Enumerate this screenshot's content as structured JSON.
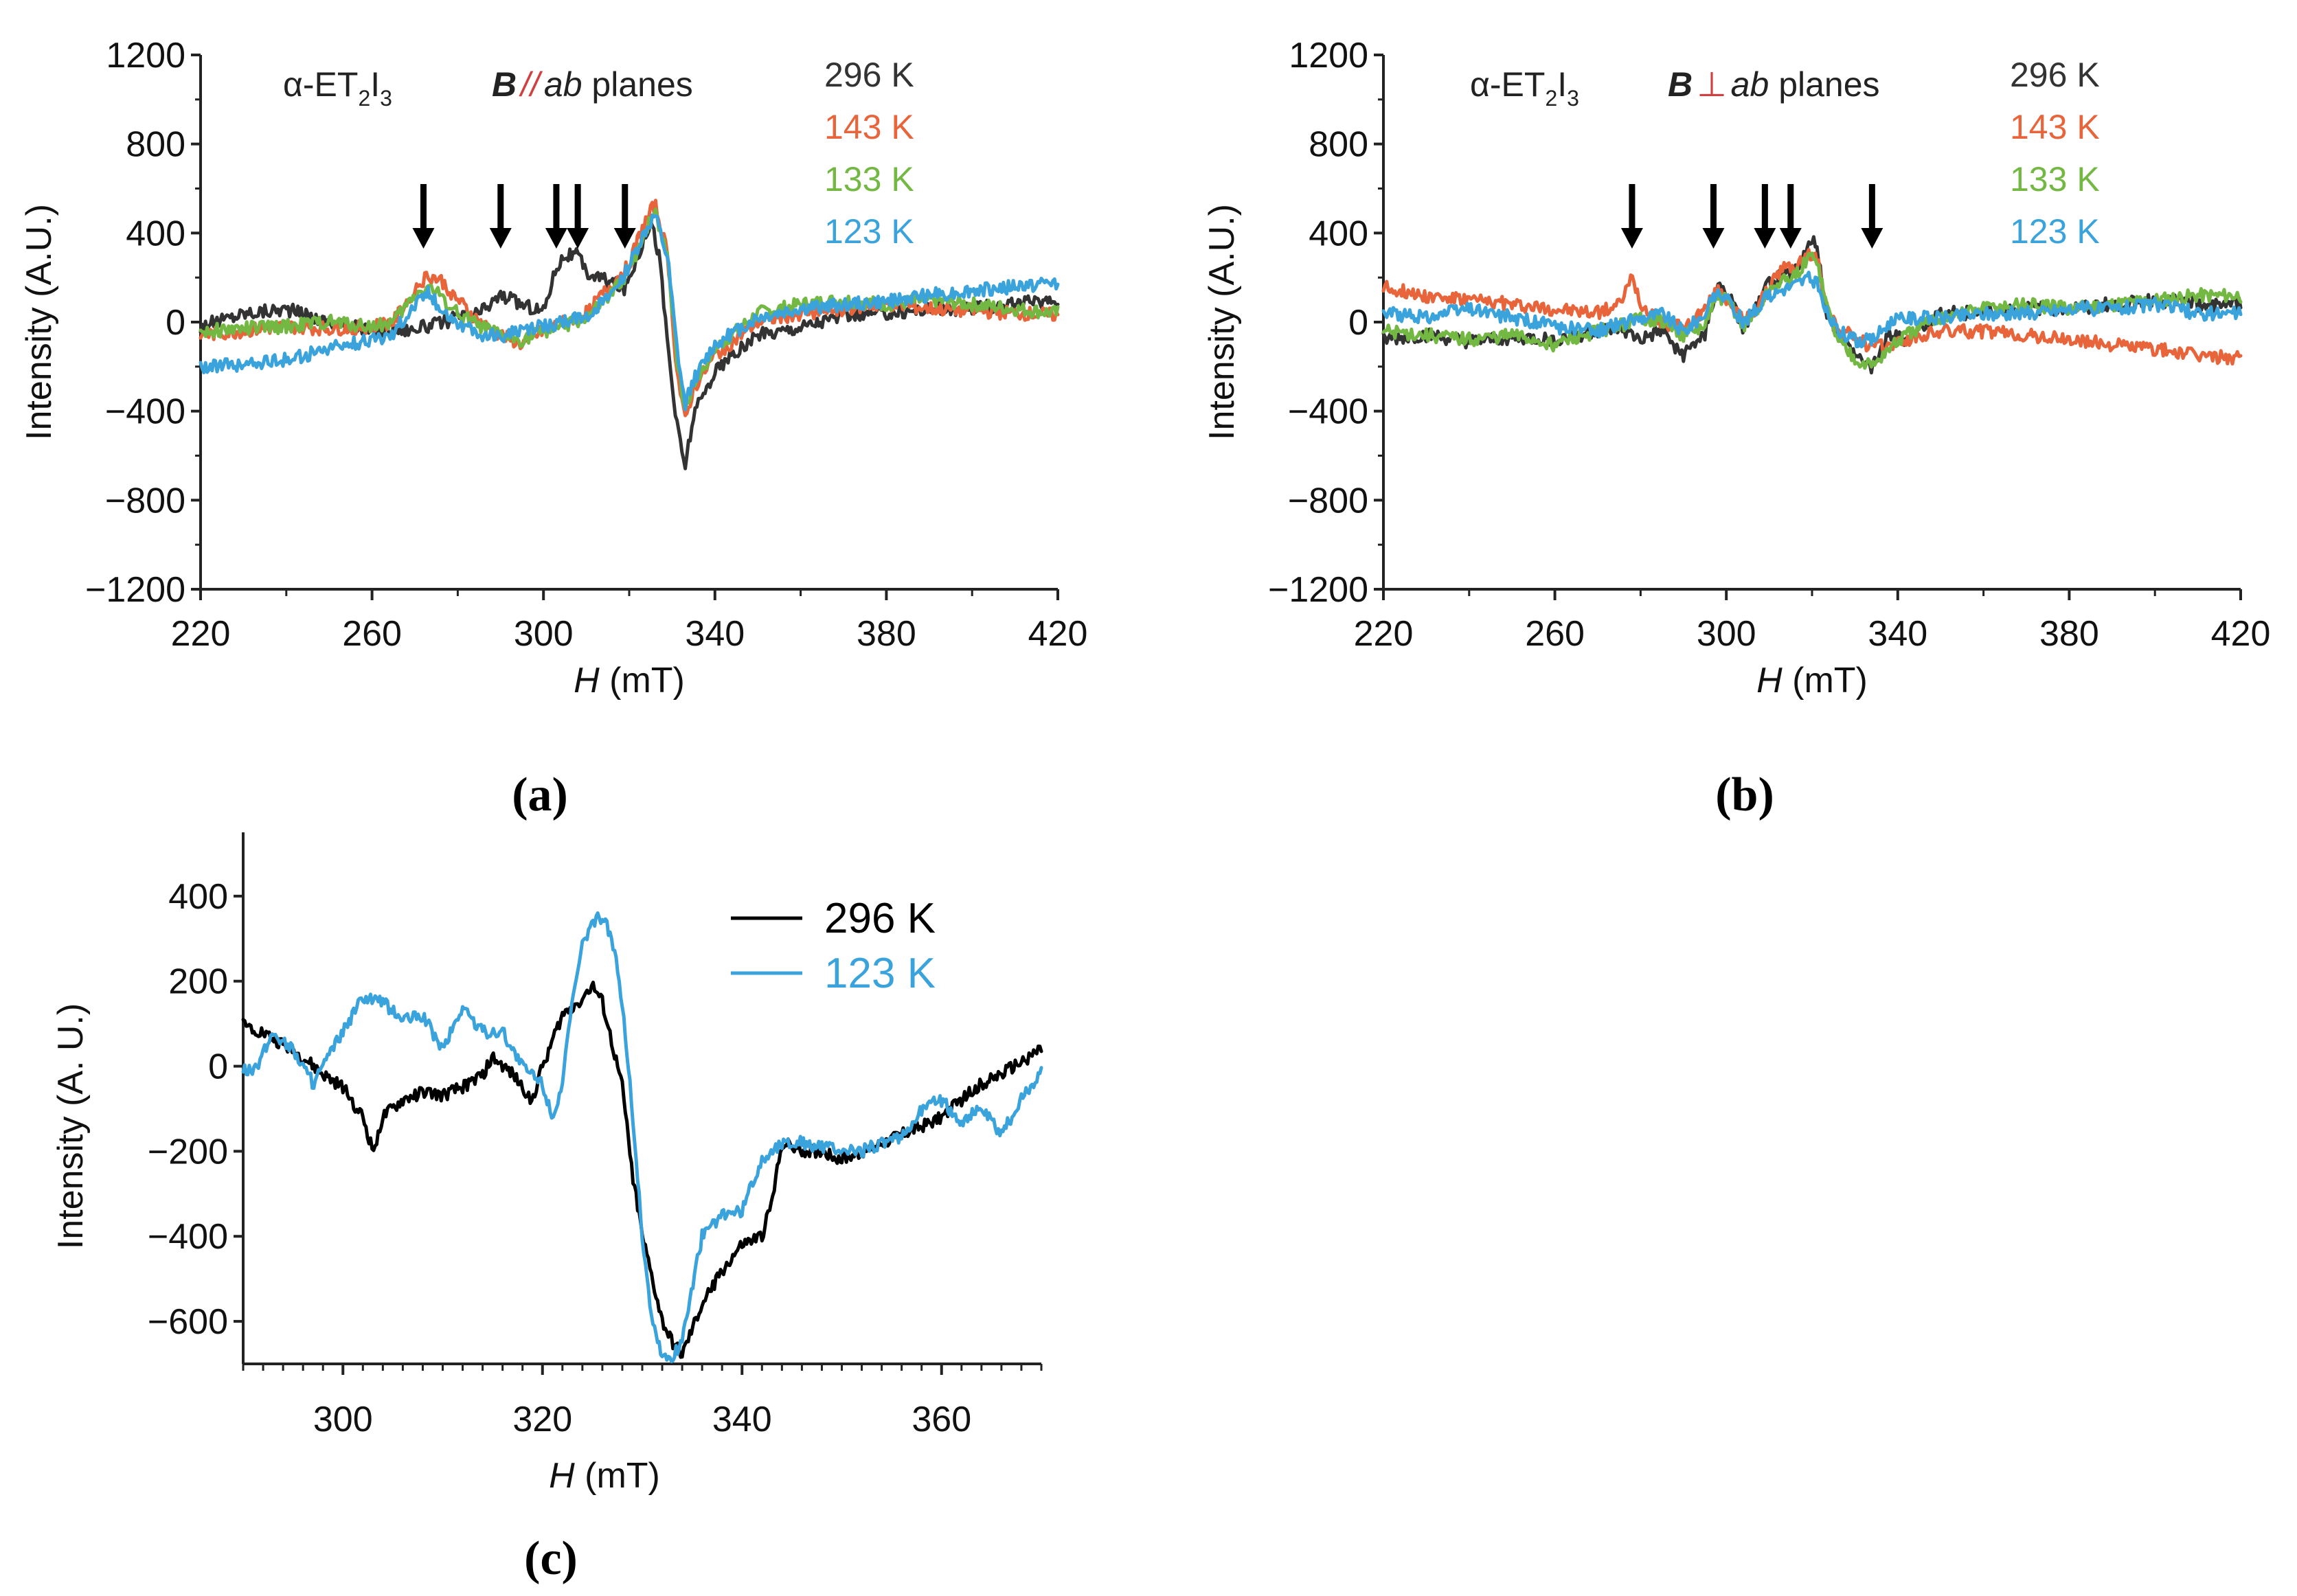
{
  "colors": {
    "k296": "#333333",
    "k143": "#e8643a",
    "k133": "#73b843",
    "k123": "#3aa3dc",
    "black": "#000000",
    "accent": "#d04040"
  },
  "panels": {
    "a": {
      "label": "(a)",
      "compound": "α-ET",
      "compound_sub1": "2",
      "compound_mid": "I",
      "compound_sub2": "3",
      "field_symbol": "B",
      "field_relation": "//",
      "field_plane": "ab",
      "field_suffix": " planes",
      "legend": [
        "296 K",
        "143 K",
        "133 K",
        "123 K"
      ]
    },
    "b": {
      "label": "(b)",
      "compound": "α-ET",
      "compound_sub1": "2",
      "compound_mid": "I",
      "compound_sub2": "3",
      "field_symbol": "B",
      "field_relation": "⊥",
      "field_plane": "ab",
      "field_suffix": " planes",
      "legend": [
        "296 K",
        "143 K",
        "133 K",
        "123 K"
      ]
    },
    "c": {
      "label": "(c)",
      "legend": [
        "296 K",
        "123 K"
      ]
    }
  },
  "chart_data": [
    {
      "id": "a",
      "type": "line",
      "title": "α-ET2I3 B // ab planes",
      "xlabel": "H (mT)",
      "ylabel": "Intensity (A.U.)",
      "xlim": [
        220,
        420
      ],
      "ylim": [
        -1200,
        1200
      ],
      "xticks": [
        220,
        260,
        300,
        340,
        380,
        420
      ],
      "yticks": [
        1200,
        800,
        400,
        0,
        -400,
        -800,
        -1200
      ],
      "ytick_labels": [
        "1200",
        "800",
        "400",
        "0",
        "−400",
        "−800",
        "−1200"
      ],
      "arrows_at": [
        272,
        290,
        303,
        308,
        319
      ],
      "series": [
        {
          "name": "296 K",
          "color": "k296",
          "x": [
            220,
            230,
            240,
            250,
            260,
            270,
            275,
            280,
            285,
            290,
            295,
            300,
            303,
            305,
            308,
            310,
            313,
            316,
            319,
            322,
            325,
            327,
            329,
            331,
            333,
            335,
            340,
            350,
            360,
            370,
            380,
            390,
            400,
            410,
            420
          ],
          "y": [
            -20,
            40,
            60,
            0,
            -40,
            -30,
            -10,
            20,
            40,
            120,
            80,
            50,
            250,
            300,
            300,
            220,
            200,
            180,
            150,
            300,
            460,
            300,
            -100,
            -450,
            -650,
            -420,
            -220,
            -60,
            -20,
            30,
            40,
            60,
            60,
            80,
            100
          ]
        },
        {
          "name": "143 K",
          "color": "k143",
          "x": [
            220,
            230,
            240,
            250,
            260,
            265,
            270,
            273,
            276,
            280,
            285,
            290,
            295,
            300,
            305,
            310,
            315,
            320,
            323,
            326,
            329,
            331,
            333,
            335,
            340,
            350,
            360,
            370,
            380,
            390,
            400,
            410,
            420
          ],
          "y": [
            -60,
            -40,
            -20,
            -30,
            -20,
            0,
            150,
            210,
            190,
            100,
            0,
            -60,
            -100,
            -40,
            0,
            40,
            150,
            260,
            420,
            530,
            300,
            -200,
            -450,
            -300,
            -150,
            0,
            40,
            60,
            80,
            60,
            50,
            40,
            30
          ]
        },
        {
          "name": "133 K",
          "color": "k133",
          "x": [
            220,
            230,
            240,
            250,
            260,
            265,
            270,
            273,
            276,
            280,
            285,
            290,
            295,
            300,
            305,
            310,
            315,
            320,
            323,
            326,
            329,
            331,
            333,
            335,
            340,
            350,
            360,
            370,
            380,
            390,
            400,
            410,
            420
          ],
          "y": [
            -40,
            -30,
            -20,
            0,
            -20,
            0,
            120,
            160,
            120,
            40,
            -20,
            -60,
            -80,
            -40,
            -20,
            20,
            100,
            230,
            380,
            500,
            300,
            -150,
            -400,
            -280,
            -120,
            40,
            80,
            100,
            80,
            100,
            80,
            60,
            40
          ]
        },
        {
          "name": "123 K",
          "color": "k123",
          "x": [
            220,
            230,
            240,
            250,
            260,
            265,
            270,
            273,
            276,
            280,
            285,
            290,
            295,
            300,
            305,
            310,
            315,
            320,
            323,
            326,
            329,
            331,
            333,
            335,
            340,
            350,
            360,
            370,
            380,
            390,
            400,
            410,
            420
          ],
          "y": [
            -200,
            -190,
            -170,
            -120,
            -80,
            -50,
            80,
            140,
            60,
            0,
            -60,
            -60,
            -40,
            -20,
            0,
            30,
            100,
            250,
            380,
            480,
            280,
            -100,
            -380,
            -260,
            -100,
            20,
            60,
            80,
            90,
            120,
            140,
            160,
            180
          ]
        }
      ]
    },
    {
      "id": "b",
      "type": "line",
      "title": "α-ET2I3 B ⊥ ab planes",
      "xlabel": "H (mT)",
      "ylabel": "Intensity (A.U.)",
      "xlim": [
        220,
        420
      ],
      "ylim": [
        -1200,
        1200
      ],
      "xticks": [
        220,
        260,
        300,
        340,
        380,
        420
      ],
      "yticks": [
        1200,
        800,
        400,
        0,
        -400,
        -800,
        -1200
      ],
      "ytick_labels": [
        "1200",
        "800",
        "400",
        "0",
        "−400",
        "−800",
        "−1200"
      ],
      "arrows_at": [
        278,
        297,
        309,
        315,
        334
      ],
      "series": [
        {
          "name": "296 K",
          "color": "k296",
          "x": [
            220,
            230,
            240,
            250,
            260,
            270,
            275,
            280,
            285,
            290,
            295,
            298,
            301,
            304,
            307,
            310,
            313,
            316,
            319,
            321,
            323,
            326,
            330,
            334,
            338,
            342,
            350,
            360,
            370,
            380,
            390,
            400,
            410,
            420
          ],
          "y": [
            -80,
            -60,
            -90,
            -70,
            -80,
            -40,
            -30,
            -80,
            -40,
            -150,
            -50,
            170,
            100,
            -40,
            60,
            180,
            210,
            230,
            330,
            370,
            60,
            -50,
            -150,
            -200,
            -60,
            -80,
            40,
            40,
            60,
            60,
            80,
            100,
            80,
            80
          ]
        },
        {
          "name": "143 K",
          "color": "k143",
          "x": [
            220,
            230,
            240,
            250,
            260,
            270,
            275,
            278,
            281,
            285,
            290,
            295,
            298,
            301,
            304,
            307,
            310,
            313,
            316,
            319,
            321,
            323,
            326,
            330,
            334,
            338,
            342,
            350,
            360,
            370,
            380,
            390,
            400,
            410,
            420
          ],
          "y": [
            160,
            120,
            100,
            80,
            60,
            40,
            80,
            200,
            40,
            0,
            -30,
            60,
            140,
            90,
            0,
            60,
            150,
            240,
            250,
            300,
            300,
            120,
            -40,
            -60,
            -120,
            -100,
            -80,
            -40,
            -40,
            -60,
            -80,
            -100,
            -120,
            -150,
            -160
          ]
        },
        {
          "name": "133 K",
          "color": "k133",
          "x": [
            220,
            230,
            240,
            250,
            260,
            270,
            275,
            280,
            285,
            290,
            295,
            298,
            301,
            304,
            307,
            310,
            313,
            316,
            319,
            321,
            323,
            326,
            330,
            334,
            338,
            342,
            350,
            360,
            370,
            380,
            390,
            400,
            410,
            420
          ],
          "y": [
            -40,
            -60,
            -80,
            -60,
            -100,
            -40,
            -20,
            20,
            0,
            -60,
            -20,
            120,
            80,
            -20,
            40,
            140,
            180,
            200,
            280,
            300,
            100,
            -80,
            -160,
            -200,
            -120,
            -60,
            20,
            60,
            80,
            60,
            80,
            100,
            120,
            120
          ]
        },
        {
          "name": "123 K",
          "color": "k123",
          "x": [
            220,
            230,
            240,
            250,
            260,
            270,
            275,
            280,
            285,
            290,
            295,
            298,
            301,
            304,
            307,
            310,
            313,
            316,
            319,
            321,
            323,
            326,
            330,
            334,
            338,
            342,
            350,
            360,
            370,
            380,
            390,
            400,
            410,
            420
          ],
          "y": [
            40,
            20,
            60,
            20,
            -20,
            -40,
            -10,
            20,
            40,
            -40,
            40,
            140,
            80,
            0,
            60,
            120,
            150,
            170,
            200,
            180,
            60,
            -40,
            -80,
            -80,
            0,
            20,
            20,
            40,
            40,
            60,
            60,
            80,
            40,
            40
          ]
        }
      ]
    },
    {
      "id": "c",
      "type": "line",
      "title": "",
      "xlabel": "H (mT)",
      "ylabel": "Intensity (A. U.)",
      "xlim": [
        290,
        370
      ],
      "ylim": [
        -700,
        550
      ],
      "xticks": [
        300,
        320,
        340,
        360
      ],
      "yticks": [
        400,
        200,
        0,
        -200,
        -400,
        -600
      ],
      "ytick_labels": [
        "400",
        "200",
        "0",
        "−200",
        "−400",
        "−600"
      ],
      "series": [
        {
          "name": "296 K",
          "color": "black",
          "x": [
            290,
            292,
            294,
            296,
            298,
            300,
            302,
            303,
            304,
            306,
            308,
            310,
            312,
            314,
            315,
            317,
            319,
            320,
            322,
            324,
            325,
            326,
            327,
            328,
            329,
            330,
            331,
            332,
            333,
            334,
            336,
            338,
            340,
            342,
            343,
            344,
            346,
            348,
            350,
            352,
            354,
            356,
            358,
            360,
            362,
            364,
            366,
            368,
            370
          ],
          "y": [
            100,
            80,
            50,
            20,
            -20,
            -50,
            -120,
            -200,
            -120,
            -80,
            -60,
            -70,
            -50,
            -20,
            20,
            -20,
            -80,
            0,
            120,
            160,
            190,
            150,
            50,
            -50,
            -250,
            -400,
            -500,
            -600,
            -650,
            -680,
            -560,
            -480,
            -420,
            -400,
            -320,
            -180,
            -200,
            -200,
            -220,
            -200,
            -180,
            -160,
            -140,
            -120,
            -80,
            -40,
            -20,
            10,
            40
          ]
        },
        {
          "name": "123 K",
          "color": "k123",
          "x": [
            290,
            291,
            293,
            295,
            297,
            300,
            302,
            304,
            306,
            308,
            310,
            312,
            314,
            316,
            318,
            320,
            321,
            322,
            323,
            324,
            325,
            326,
            327,
            328,
            329,
            330,
            331,
            332,
            333,
            334,
            336,
            338,
            340,
            342,
            344,
            346,
            348,
            350,
            352,
            354,
            356,
            358,
            360,
            362,
            364,
            366,
            368,
            370
          ],
          "y": [
            0,
            -20,
            80,
            40,
            -40,
            80,
            160,
            150,
            110,
            120,
            40,
            140,
            80,
            80,
            0,
            -40,
            -120,
            -40,
            150,
            280,
            340,
            350,
            300,
            150,
            -100,
            -400,
            -600,
            -680,
            -690,
            -640,
            -400,
            -350,
            -340,
            -220,
            -180,
            -180,
            -190,
            -200,
            -200,
            -180,
            -170,
            -100,
            -80,
            -130,
            -100,
            -160,
            -80,
            -10
          ]
        }
      ]
    }
  ]
}
